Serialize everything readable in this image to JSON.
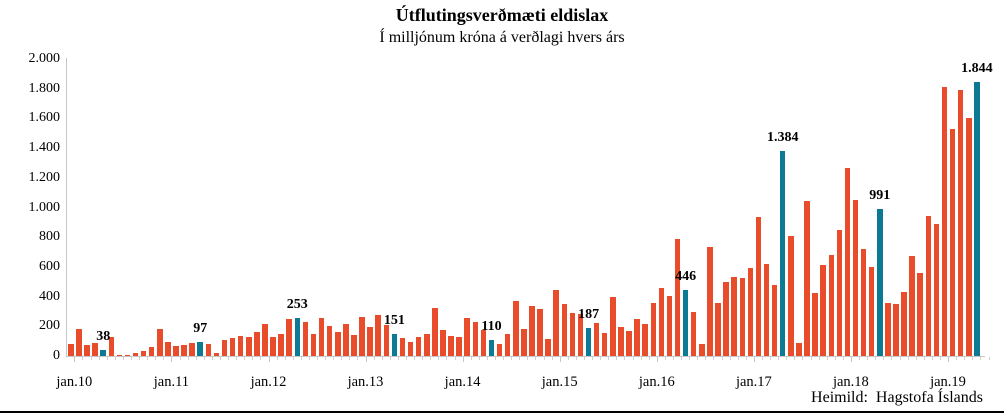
{
  "header": {
    "title": "Útflutingsverðmæti eldislax",
    "subtitle": "Í milljónum króna á verðlagi hvers árs"
  },
  "footer": {
    "source": "Heimild:  Hagstofa Íslands"
  },
  "chart_data": {
    "type": "bar",
    "title": "Útflutingsverðmæti eldislax",
    "subtitle": "Í milljónum króna á verðlagi hvers árs",
    "source": "Heimild: Hagstofa Íslands",
    "frequency": "monthly",
    "x_range": "jan.2010 - maí.2019",
    "x_tick_labels": [
      "jan.10",
      "jan.11",
      "jan.12",
      "jan.13",
      "jan.14",
      "jan.15",
      "jan.16",
      "jan.17",
      "jan.18",
      "jan.19"
    ],
    "ylim": [
      0,
      2000
    ],
    "y_tick_step": 200,
    "y_tick_labels": [
      "0",
      "200",
      "400",
      "600",
      "800",
      "1.000",
      "1.200",
      "1.400",
      "1.600",
      "1.800",
      "2.000"
    ],
    "grid": "off",
    "legend": "none",
    "values": [
      81,
      179,
      74,
      90,
      38,
      126,
      9,
      5,
      22,
      36,
      63,
      180,
      96,
      70,
      74,
      90,
      97,
      83,
      18,
      108,
      119,
      137,
      126,
      165,
      213,
      130,
      146,
      247,
      253,
      227,
      146,
      258,
      204,
      164,
      213,
      141,
      260,
      193,
      276,
      209,
      151,
      123,
      92,
      130,
      150,
      325,
      175,
      137,
      126,
      253,
      231,
      175,
      110,
      78,
      150,
      370,
      180,
      336,
      314,
      112,
      444,
      350,
      287,
      280,
      187,
      224,
      157,
      395,
      197,
      168,
      247,
      215,
      359,
      460,
      405,
      785,
      446,
      298,
      81,
      736,
      354,
      500,
      529,
      523,
      590,
      933,
      617,
      478,
      1384,
      810,
      90,
      1045,
      426,
      612,
      680,
      852,
      1269,
      1050,
      718,
      601,
      991,
      354,
      350,
      433,
      675,
      556,
      942,
      888,
      1810,
      1530,
      1790,
      1600,
      1844
    ],
    "highlight_indices": [
      4,
      16,
      28,
      40,
      52,
      64,
      76,
      88,
      100,
      112
    ],
    "highlight_values": [
      38,
      97,
      253,
      151,
      110,
      187,
      446,
      1384,
      991,
      1844
    ],
    "highlight_labels": [
      "38",
      "97",
      "253",
      "151",
      "110",
      "187",
      "446",
      "1.384",
      "991",
      "1.844"
    ],
    "colors": {
      "bar": "#E84C2B",
      "highlight": "#0C7A93",
      "axis": "#C6C6C6",
      "text": "#000000"
    }
  }
}
